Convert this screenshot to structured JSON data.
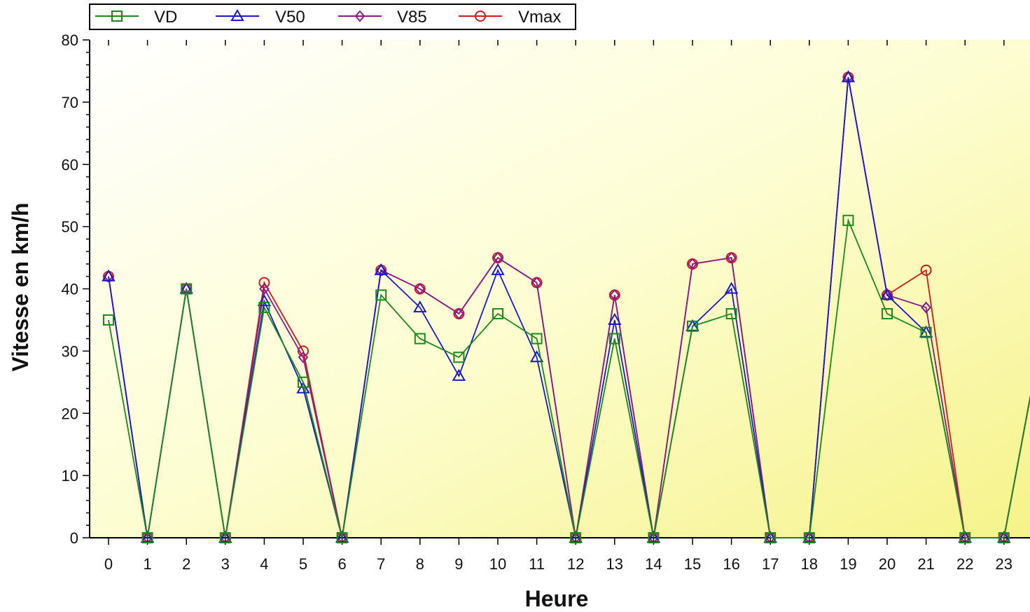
{
  "chart_data": {
    "type": "line",
    "xlabel": "Heure",
    "ylabel": "Vitesse en km/h",
    "x": [
      0,
      1,
      2,
      3,
      4,
      5,
      6,
      7,
      8,
      9,
      10,
      11,
      12,
      13,
      14,
      15,
      16,
      17,
      18,
      19,
      20,
      21,
      22,
      23
    ],
    "ylim": [
      0,
      80
    ],
    "yticks": [
      0,
      10,
      20,
      30,
      40,
      50,
      60,
      70,
      80
    ],
    "grid": false,
    "legend_position": "top-left",
    "series": [
      {
        "name": "VD",
        "color": "#1a8a1a",
        "marker": "square",
        "values": [
          35,
          0,
          40,
          0,
          37,
          25,
          0,
          39,
          32,
          29,
          36,
          32,
          0,
          32,
          0,
          34,
          36,
          0,
          0,
          51,
          36,
          33,
          0,
          0
        ]
      },
      {
        "name": "V50",
        "color": "#1a1acc",
        "marker": "triangle",
        "values": [
          42,
          0,
          40,
          0,
          38,
          24,
          0,
          43,
          37,
          26,
          43,
          29,
          0,
          35,
          0,
          34,
          40,
          0,
          0,
          74,
          39,
          33,
          0,
          0
        ]
      },
      {
        "name": "V85",
        "color": "#8a1a8a",
        "marker": "diamond",
        "values": [
          42,
          0,
          40,
          0,
          40,
          29,
          0,
          43,
          40,
          36,
          45,
          41,
          0,
          39,
          0,
          44,
          45,
          0,
          0,
          74,
          39,
          37,
          0,
          0
        ]
      },
      {
        "name": "Vmax",
        "color": "#d01a1a",
        "marker": "circle",
        "values": [
          42,
          0,
          40,
          0,
          41,
          30,
          0,
          43,
          40,
          36,
          45,
          41,
          0,
          39,
          0,
          44,
          45,
          0,
          0,
          74,
          39,
          43,
          0,
          0
        ]
      }
    ]
  }
}
